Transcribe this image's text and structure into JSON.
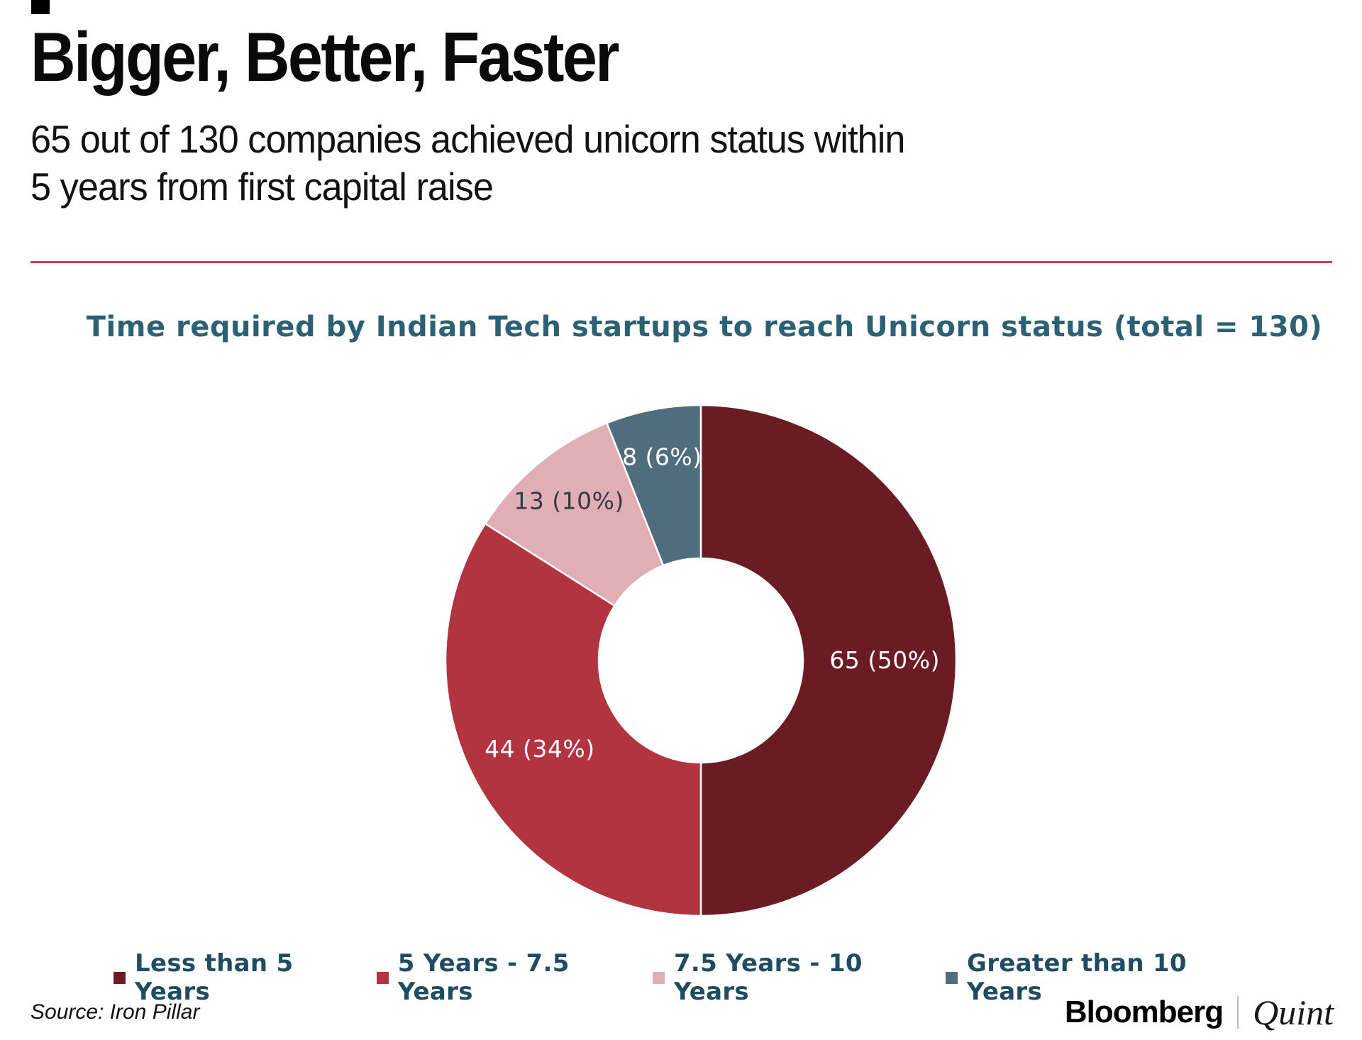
{
  "page": {
    "background_color": "#ffffff"
  },
  "header": {
    "title": "Bigger, Better, Faster",
    "subtitle_lines": [
      "65 out of 130 companies achieved unicorn status within",
      "5 years from first capital raise"
    ],
    "divider_color": "#C8405A"
  },
  "chart_data": {
    "type": "donut",
    "title": "Time required by Indian Tech startups to reach Unicorn status (total = 130)",
    "title_color": "#2B6173",
    "total": 130,
    "direction": "clockwise",
    "start_angle_deg": 0,
    "inner_radius_ratio": 0.4,
    "legend_position": "bottom",
    "legend_text_color": "#1F4C60",
    "slices": [
      {
        "label": "Less than 5 Years",
        "value": 65,
        "pct": 50,
        "display": "65 (50%)",
        "color": "#6A1B23",
        "label_color": "#FFFFFF"
      },
      {
        "label": "5 Years - 7.5 Years",
        "value": 44,
        "pct": 34,
        "display": "44 (34%)",
        "color": "#B13440",
        "label_color": "#FFFFFF"
      },
      {
        "label": "7.5 Years - 10 Years",
        "value": 13,
        "pct": 10,
        "display": "13 (10%)",
        "color": "#E2AEB6",
        "label_color": "#333B40"
      },
      {
        "label": "Greater than 10 Years",
        "value": 8,
        "pct": 6,
        "display": "8 (6%)",
        "color": "#4F6E7D",
        "label_color": "#FFFFFF"
      }
    ]
  },
  "footer": {
    "source": "Source: Iron Pillar",
    "brand_primary": "Bloomberg",
    "brand_secondary": "Quint"
  }
}
